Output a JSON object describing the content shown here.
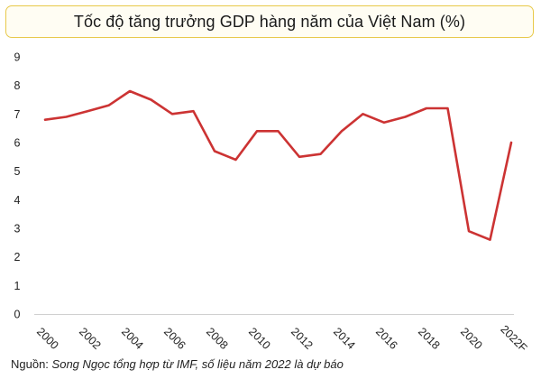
{
  "title": "Tốc độ tăng trưởng GDP hàng năm của Việt Nam (%)",
  "source": {
    "prefix": "Nguồn:",
    "detail": "Song Ngọc tổng hợp từ IMF, số liệu năm 2022 là dự báo"
  },
  "colors": {
    "line": "#cc3333",
    "axis": "#d0d0d0",
    "title_border": "#e8c94a"
  },
  "chart_data": {
    "type": "line",
    "title": "Tốc độ tăng trưởng GDP hàng năm của Việt Nam (%)",
    "xlabel": "",
    "ylabel": "",
    "ylim": [
      0,
      9
    ],
    "yticks": [
      0,
      1,
      2,
      3,
      4,
      5,
      6,
      7,
      8,
      9
    ],
    "grid": false,
    "x": [
      "2000",
      "2001",
      "2002",
      "2003",
      "2004",
      "2005",
      "2006",
      "2007",
      "2008",
      "2009",
      "2010",
      "2011",
      "2012",
      "2013",
      "2014",
      "2015",
      "2016",
      "2017",
      "2018",
      "2019",
      "2020",
      "2021",
      "2022F"
    ],
    "xtick_labels": [
      "2000",
      "2002",
      "2004",
      "2006",
      "2008",
      "2010",
      "2012",
      "2014",
      "2016",
      "2018",
      "2020",
      "2022F"
    ],
    "series": [
      {
        "values": [
          6.8,
          6.9,
          7.1,
          7.3,
          7.8,
          7.5,
          7.0,
          7.1,
          5.7,
          5.4,
          6.4,
          6.4,
          5.5,
          5.6,
          6.4,
          7.0,
          6.7,
          6.9,
          7.2,
          7.2,
          2.9,
          2.6,
          6.0
        ]
      }
    ]
  }
}
